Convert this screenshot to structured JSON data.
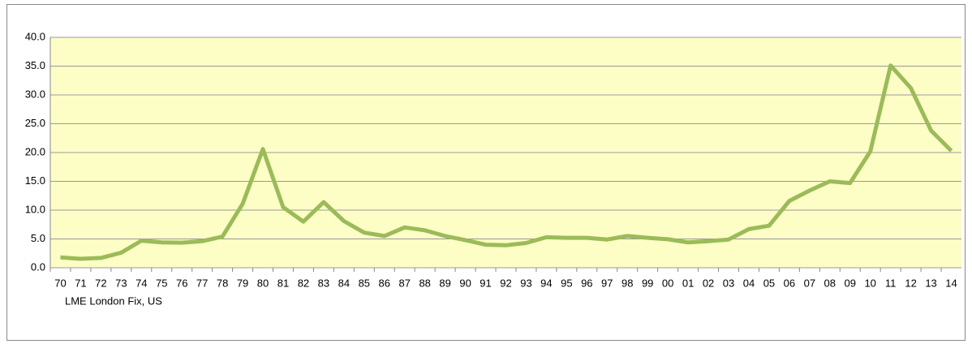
{
  "chart_data": {
    "type": "line",
    "categories": [
      "70",
      "71",
      "72",
      "73",
      "74",
      "75",
      "76",
      "77",
      "78",
      "79",
      "80",
      "81",
      "82",
      "83",
      "84",
      "85",
      "86",
      "87",
      "88",
      "89",
      "90",
      "91",
      "92",
      "93",
      "94",
      "95",
      "96",
      "97",
      "98",
      "99",
      "00",
      "01",
      "02",
      "03",
      "04",
      "05",
      "06",
      "07",
      "08",
      "09",
      "10",
      "11",
      "12",
      "13",
      "14"
    ],
    "series": [
      {
        "name": "LME London Fix, US",
        "color": "#9bbb59",
        "values": [
          1.8,
          1.55,
          1.7,
          2.6,
          4.7,
          4.4,
          4.35,
          4.6,
          5.4,
          11.1,
          20.6,
          10.5,
          8.0,
          11.4,
          8.1,
          6.1,
          5.5,
          7.0,
          6.5,
          5.5,
          4.8,
          4.0,
          3.9,
          4.3,
          5.3,
          5.2,
          5.2,
          4.9,
          5.5,
          5.2,
          4.95,
          4.4,
          4.6,
          4.9,
          6.7,
          7.3,
          11.6,
          13.4,
          15.0,
          14.7,
          20.2,
          35.1,
          31.2,
          23.8,
          20.3
        ]
      }
    ],
    "ylim": [
      0,
      40
    ],
    "yticks": [
      {
        "value": 0,
        "label": "0.0"
      },
      {
        "value": 5,
        "label": "5.0"
      },
      {
        "value": 10,
        "label": "10.0"
      },
      {
        "value": 15,
        "label": "15.0"
      },
      {
        "value": 20,
        "label": "20.0"
      },
      {
        "value": 25,
        "label": "25.0"
      },
      {
        "value": 30,
        "label": "30.0"
      },
      {
        "value": 35,
        "label": "35.0"
      },
      {
        "value": 40,
        "label": "40.0"
      }
    ],
    "grid": true,
    "plot_background": "#fdfdc6"
  }
}
